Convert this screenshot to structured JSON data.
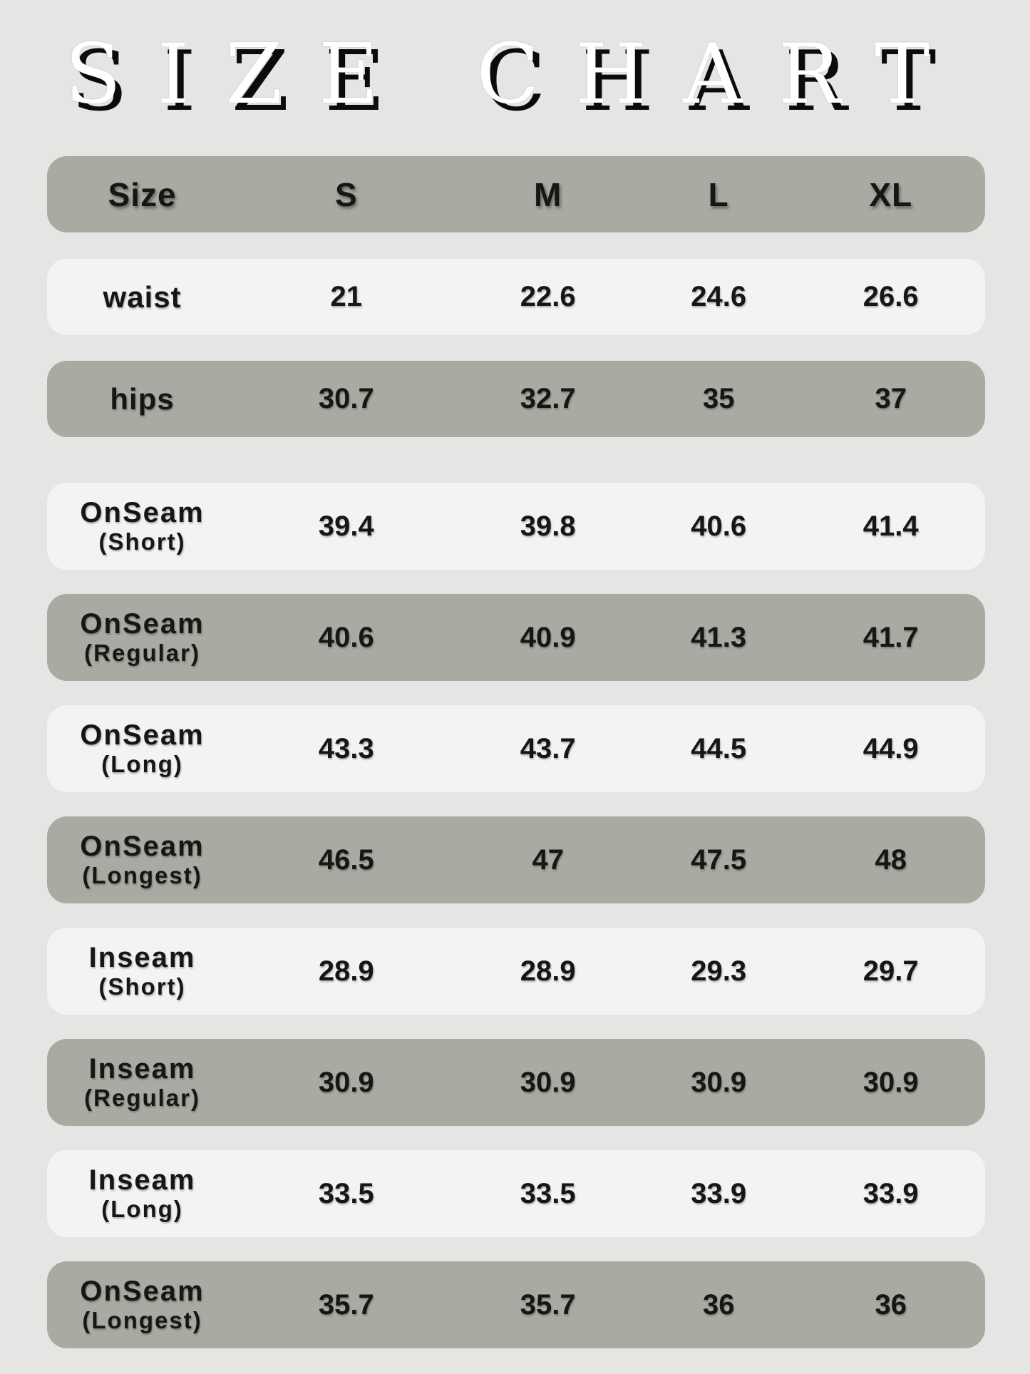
{
  "title": "SIZE CHART",
  "colors": {
    "background": "#e5e5e3",
    "row_dark": "#a8aba1",
    "row_light": "#f3f3f1",
    "text": "#161616",
    "title_fill": "#ffffff",
    "title_shadow": "#0b0b0b"
  },
  "chart_data": {
    "type": "table",
    "title": "SIZE CHART",
    "columns": [
      "Size",
      "S",
      "M",
      "L",
      "XL"
    ],
    "rows": [
      {
        "label": "waist",
        "sublabel": "",
        "values": [
          "21",
          "22.6",
          "24.6",
          "26.6"
        ],
        "shade": "light"
      },
      {
        "label": "hips",
        "sublabel": "",
        "values": [
          "30.7",
          "32.7",
          "35",
          "37"
        ],
        "shade": "dark"
      },
      {
        "label": "OnSeam",
        "sublabel": "(Short)",
        "values": [
          "39.4",
          "39.8",
          "40.6",
          "41.4"
        ],
        "shade": "light"
      },
      {
        "label": "OnSeam",
        "sublabel": "(Regular)",
        "values": [
          "40.6",
          "40.9",
          "41.3",
          "41.7"
        ],
        "shade": "dark"
      },
      {
        "label": "OnSeam",
        "sublabel": "(Long)",
        "values": [
          "43.3",
          "43.7",
          "44.5",
          "44.9"
        ],
        "shade": "light"
      },
      {
        "label": "OnSeam",
        "sublabel": "(Longest)",
        "values": [
          "46.5",
          "47",
          "47.5",
          "48"
        ],
        "shade": "dark"
      },
      {
        "label": "Inseam",
        "sublabel": "(Short)",
        "values": [
          "28.9",
          "28.9",
          "29.3",
          "29.7"
        ],
        "shade": "light"
      },
      {
        "label": "Inseam",
        "sublabel": "(Regular)",
        "values": [
          "30.9",
          "30.9",
          "30.9",
          "30.9"
        ],
        "shade": "dark"
      },
      {
        "label": "Inseam",
        "sublabel": "(Long)",
        "values": [
          "33.5",
          "33.5",
          "33.9",
          "33.9"
        ],
        "shade": "light"
      },
      {
        "label": "OnSeam",
        "sublabel": "(Longest)",
        "values": [
          "35.7",
          "35.7",
          "36",
          "36"
        ],
        "shade": "dark"
      }
    ]
  }
}
